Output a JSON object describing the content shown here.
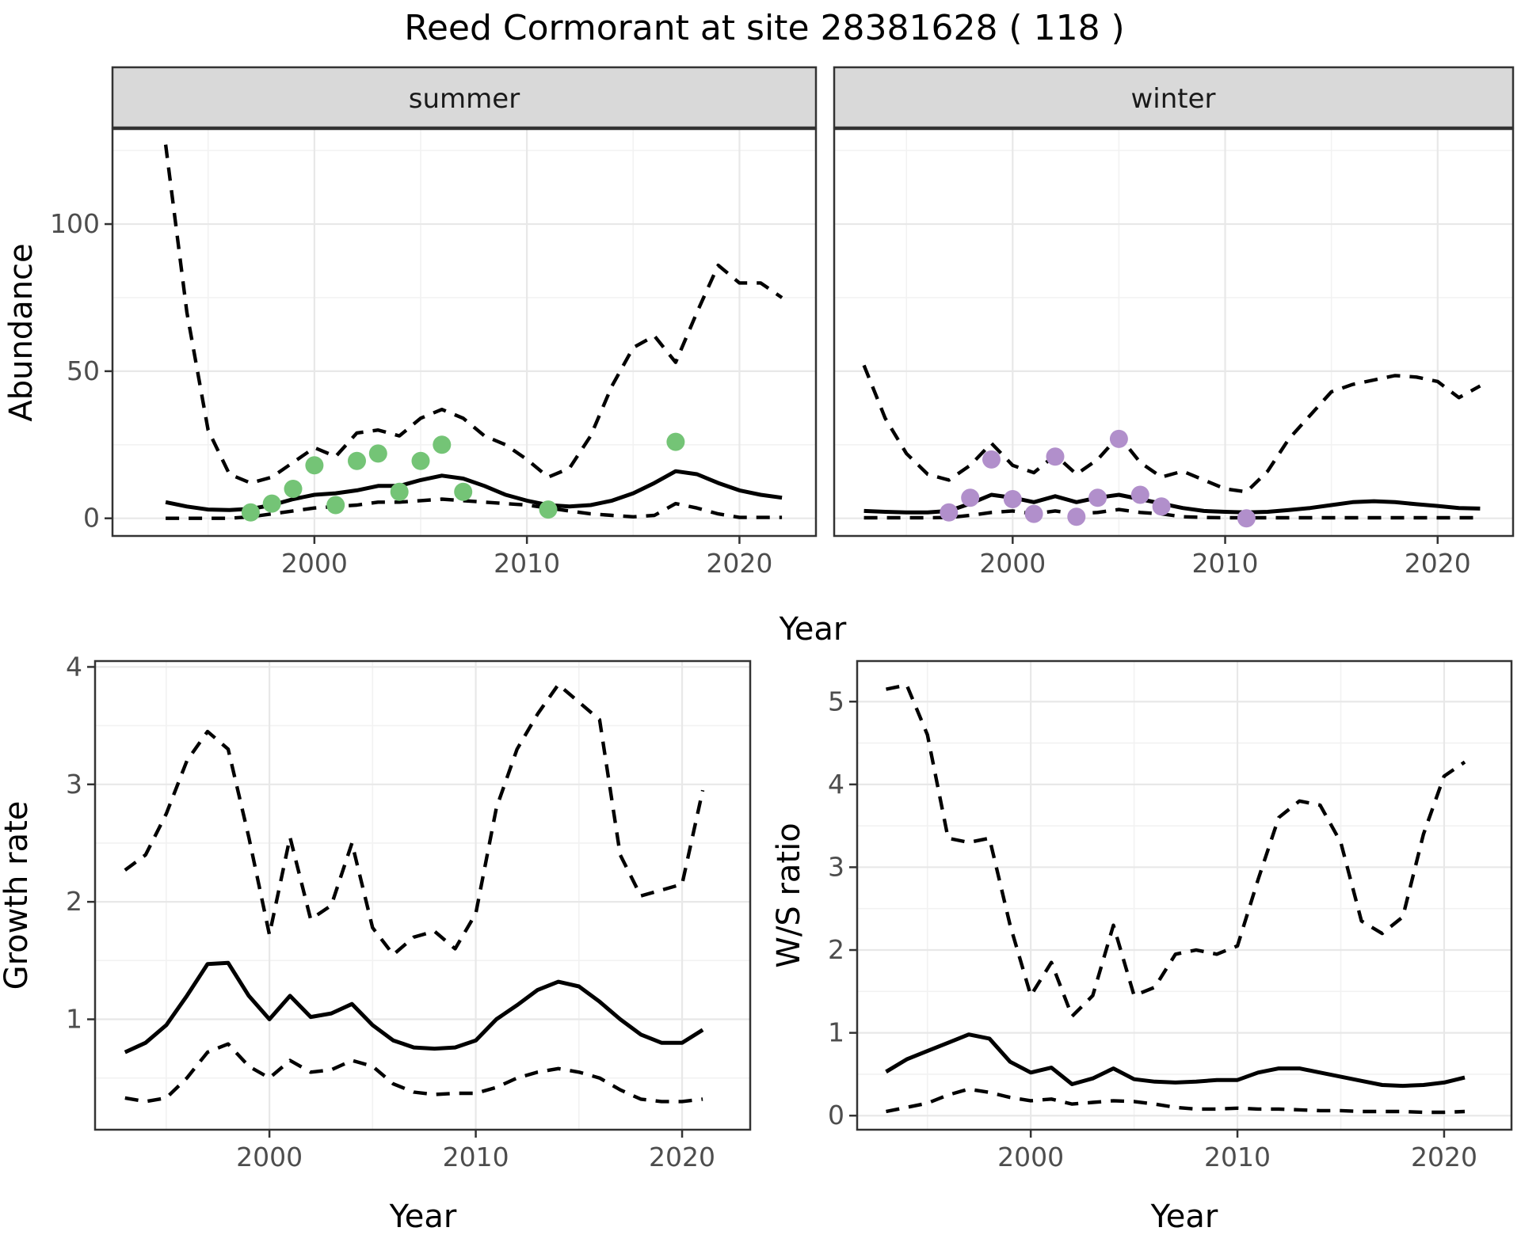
{
  "title": "Reed Cormorant at site 28381628 ( 118 )",
  "axes": {
    "abundance_label": "Abundance",
    "growth_label": "Growth rate",
    "ws_label": "W/S ratio",
    "year_label_top": "Year",
    "year_label_growth": "Year",
    "year_label_ws": "Year"
  },
  "facets": {
    "summer": "summer",
    "winter": "winter"
  },
  "colors": {
    "line": "#000000",
    "summer_points": "#74C476",
    "winter_points": "#B18FCB",
    "strip_fill": "#D9D9D9",
    "grid_major": "#E8E8E8",
    "grid_minor": "#F2F2F2",
    "border": "#333333",
    "tick_text": "#4D4D4D"
  },
  "chart_data": [
    {
      "id": "abundance_summer",
      "type": "line",
      "facet": "summer",
      "xlabel": "Year",
      "ylabel": "Abundance",
      "grid": true,
      "legend": "none",
      "xticks": [
        2000,
        2010,
        2020
      ],
      "yticks": [
        0,
        50,
        100
      ],
      "xlim": [
        1990.5,
        2023.6
      ],
      "ylim": [
        -6,
        132.3
      ],
      "x": [
        1993,
        1994,
        1995,
        1996,
        1997,
        1998,
        1999,
        2000,
        2001,
        2002,
        2003,
        2004,
        2005,
        2006,
        2007,
        2008,
        2009,
        2010,
        2011,
        2012,
        2013,
        2014,
        2015,
        2016,
        2017,
        2018,
        2019,
        2020,
        2021,
        2022
      ],
      "series": [
        {
          "name": "upper_95ci",
          "style": "dashed",
          "values": [
            127,
            70,
            30,
            15,
            12,
            14,
            19,
            24,
            21,
            29,
            30,
            28,
            34,
            37,
            34,
            28,
            25,
            20,
            14,
            17,
            28,
            45,
            58,
            62,
            53,
            70,
            86,
            80,
            80,
            75
          ]
        },
        {
          "name": "mean",
          "style": "solid",
          "values": [
            5.5,
            4,
            3,
            2.8,
            3.2,
            4.5,
            6.5,
            8,
            8.5,
            9.5,
            11,
            11,
            13,
            14.5,
            13.5,
            11,
            8,
            6,
            4.5,
            4,
            4.5,
            6,
            8.5,
            12,
            16,
            15,
            12,
            9.5,
            8,
            7
          ]
        },
        {
          "name": "lower_95ci",
          "style": "dashed",
          "values": [
            0,
            0,
            0,
            0,
            0.5,
            1.5,
            2.5,
            3.5,
            4,
            4.5,
            5.5,
            5.5,
            6,
            6.5,
            6,
            5.5,
            5,
            4.5,
            3.5,
            2.5,
            1.5,
            1,
            0.5,
            1,
            5,
            3.5,
            1.5,
            0.3,
            0.3,
            0.3
          ]
        }
      ],
      "points": {
        "name": "observed_counts",
        "x": [
          1997,
          1998,
          1999,
          2000,
          2001,
          2002,
          2003,
          2004,
          2005,
          2006,
          2007,
          2011,
          2017
        ],
        "y": [
          2,
          5,
          10,
          18,
          4.5,
          19.5,
          22,
          9,
          19.5,
          25,
          9,
          3,
          26
        ]
      }
    },
    {
      "id": "abundance_winter",
      "type": "line",
      "facet": "winter",
      "xlabel": "Year",
      "ylabel": "Abundance",
      "grid": true,
      "legend": "none",
      "xticks": [
        2000,
        2010,
        2020
      ],
      "yticks": [
        0,
        50,
        100
      ],
      "xlim": [
        1991.6,
        2023.55
      ],
      "ylim": [
        -6,
        132.3
      ],
      "x": [
        1993,
        1994,
        1995,
        1996,
        1997,
        1998,
        1999,
        2000,
        2001,
        2002,
        2003,
        2004,
        2005,
        2006,
        2007,
        2008,
        2009,
        2010,
        2011,
        2012,
        2013,
        2014,
        2015,
        2016,
        2017,
        2018,
        2019,
        2020,
        2021,
        2022
      ],
      "series": [
        {
          "name": "upper_95ci",
          "style": "dashed",
          "values": [
            52,
            34,
            22,
            15,
            13,
            18,
            25.5,
            18,
            15.5,
            21.5,
            15,
            20,
            28,
            19,
            14,
            16,
            13,
            10,
            9,
            16,
            27,
            35,
            43,
            45.5,
            47,
            48.5,
            48,
            46.5,
            41,
            45
          ]
        },
        {
          "name": "mean",
          "style": "solid",
          "values": [
            2.5,
            2.2,
            2,
            2,
            2.5,
            5,
            8,
            7,
            5.5,
            7.5,
            5.5,
            7,
            8,
            6.5,
            5,
            3.5,
            2.5,
            2.2,
            2,
            2.2,
            2.8,
            3.5,
            4.5,
            5.5,
            5.8,
            5.5,
            4.8,
            4.2,
            3.5,
            3.3
          ]
        },
        {
          "name": "lower_95ci",
          "style": "dashed",
          "values": [
            0.2,
            0.2,
            0.2,
            0.2,
            0.3,
            1,
            2,
            2.5,
            1.5,
            2.5,
            1.5,
            2,
            3,
            2,
            1.5,
            0.5,
            0.3,
            0.2,
            0.2,
            0.2,
            0.2,
            0.2,
            0.2,
            0.2,
            0.2,
            0.2,
            0.2,
            0.2,
            0.2,
            0.2
          ]
        }
      ],
      "points": {
        "name": "observed_counts",
        "x": [
          1997,
          1998,
          1999,
          2000,
          2001,
          2002,
          2003,
          2004,
          2005,
          2006,
          2007,
          2011
        ],
        "y": [
          2,
          7,
          20,
          6.5,
          1.5,
          21,
          0.5,
          7,
          27,
          8,
          4,
          0
        ]
      }
    },
    {
      "id": "growth_rate",
      "type": "line",
      "xlabel": "Year",
      "ylabel": "Growth rate",
      "grid": true,
      "legend": "none",
      "xticks": [
        2000,
        2010,
        2020
      ],
      "yticks": [
        1,
        2,
        3,
        4
      ],
      "xlim": [
        1991.55,
        2023.3
      ],
      "ylim": [
        0.06,
        4.05
      ],
      "x": [
        1993,
        1994,
        1995,
        1996,
        1997,
        1998,
        1999,
        2000,
        2001,
        2002,
        2003,
        2004,
        2005,
        2006,
        2007,
        2008,
        2009,
        2010,
        2011,
        2012,
        2013,
        2014,
        2015,
        2016,
        2017,
        2018,
        2019,
        2020,
        2021
      ],
      "series": [
        {
          "name": "upper_95ci",
          "style": "dashed",
          "values": [
            2.27,
            2.4,
            2.75,
            3.2,
            3.45,
            3.3,
            2.55,
            1.72,
            2.55,
            1.85,
            1.97,
            2.5,
            1.78,
            1.55,
            1.7,
            1.75,
            1.6,
            1.9,
            2.8,
            3.3,
            3.6,
            3.85,
            3.7,
            3.55,
            2.4,
            2.05,
            2.1,
            2.15,
            2.95
          ]
        },
        {
          "name": "mean",
          "style": "solid",
          "values": [
            0.72,
            0.8,
            0.95,
            1.2,
            1.47,
            1.48,
            1.2,
            1.0,
            1.2,
            1.02,
            1.05,
            1.13,
            0.95,
            0.82,
            0.76,
            0.75,
            0.76,
            0.82,
            1.0,
            1.12,
            1.25,
            1.32,
            1.28,
            1.15,
            1.0,
            0.87,
            0.8,
            0.8,
            0.91
          ]
        },
        {
          "name": "lower_95ci",
          "style": "dashed",
          "values": [
            0.33,
            0.3,
            0.33,
            0.5,
            0.72,
            0.79,
            0.6,
            0.5,
            0.65,
            0.55,
            0.57,
            0.65,
            0.6,
            0.45,
            0.38,
            0.36,
            0.37,
            0.37,
            0.42,
            0.5,
            0.55,
            0.58,
            0.55,
            0.5,
            0.4,
            0.32,
            0.3,
            0.3,
            0.32
          ]
        }
      ]
    },
    {
      "id": "ws_ratio",
      "type": "line",
      "xlabel": "Year",
      "ylabel": "W/S ratio",
      "grid": true,
      "legend": "none",
      "xticks": [
        2000,
        2010,
        2020
      ],
      "yticks": [
        0,
        1,
        2,
        3,
        4,
        5
      ],
      "xlim": [
        1991.6,
        2023.26
      ],
      "ylim": [
        -0.17,
        5.49
      ],
      "x": [
        1993,
        1994,
        1995,
        1996,
        1997,
        1998,
        1999,
        2000,
        2001,
        2002,
        2003,
        2004,
        2005,
        2006,
        2007,
        2008,
        2009,
        2010,
        2011,
        2012,
        2013,
        2014,
        2015,
        2016,
        2017,
        2018,
        2019,
        2020,
        2021
      ],
      "series": [
        {
          "name": "upper_95ci",
          "style": "dashed",
          "values": [
            5.15,
            5.2,
            4.6,
            3.35,
            3.3,
            3.35,
            2.3,
            1.45,
            1.85,
            1.2,
            1.45,
            2.3,
            1.45,
            1.55,
            1.95,
            2.0,
            1.95,
            2.05,
            2.85,
            3.6,
            3.8,
            3.75,
            3.3,
            2.35,
            2.2,
            2.4,
            3.4,
            4.1,
            4.27
          ]
        },
        {
          "name": "mean",
          "style": "solid",
          "values": [
            0.53,
            0.68,
            0.78,
            0.88,
            0.98,
            0.93,
            0.65,
            0.52,
            0.58,
            0.38,
            0.45,
            0.57,
            0.44,
            0.41,
            0.4,
            0.41,
            0.43,
            0.43,
            0.52,
            0.57,
            0.57,
            0.52,
            0.47,
            0.42,
            0.37,
            0.36,
            0.37,
            0.4,
            0.46
          ]
        },
        {
          "name": "lower_95ci",
          "style": "dashed",
          "values": [
            0.05,
            0.1,
            0.15,
            0.25,
            0.32,
            0.28,
            0.22,
            0.18,
            0.2,
            0.14,
            0.16,
            0.18,
            0.17,
            0.14,
            0.1,
            0.08,
            0.08,
            0.09,
            0.08,
            0.08,
            0.07,
            0.06,
            0.06,
            0.05,
            0.05,
            0.05,
            0.04,
            0.04,
            0.05
          ]
        }
      ]
    }
  ]
}
